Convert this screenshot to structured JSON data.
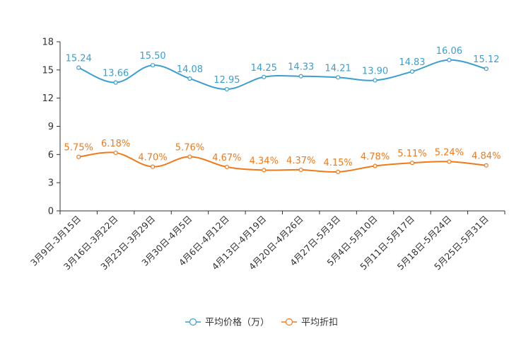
{
  "chart_data": {
    "type": "line",
    "categories": [
      "3月9日-3月15日",
      "3月16日-3月22日",
      "3月23日-3月29日",
      "3月30日-4月5日",
      "4月6日-4月12日",
      "4月13日-4月19日",
      "4月20日-4月26日",
      "4月27日-5月3日",
      "5月4日-5月10日",
      "5月11日-5月17日",
      "5月18日-5月24日",
      "5月25日-5月31日"
    ],
    "series": [
      {
        "name": "平均价格（万）",
        "color": "#3a9fd0",
        "values": [
          15.24,
          13.66,
          15.5,
          14.08,
          12.95,
          14.25,
          14.33,
          14.21,
          13.9,
          14.83,
          16.06,
          15.12
        ],
        "labels": [
          "15.24",
          "13.66",
          "15.50",
          "14.08",
          "12.95",
          "14.25",
          "14.33",
          "14.21",
          "13.90",
          "14.83",
          "16.06",
          "15.12"
        ]
      },
      {
        "name": "平均折扣",
        "color": "#f07a1a",
        "values": [
          5.75,
          6.18,
          4.7,
          5.76,
          4.67,
          4.34,
          4.37,
          4.15,
          4.78,
          5.11,
          5.24,
          4.84
        ],
        "labels": [
          "5.75%",
          "6.18%",
          "4.70%",
          "5.76%",
          "4.67%",
          "4.34%",
          "4.37%",
          "4.15%",
          "4.78%",
          "5.11%",
          "5.24%",
          "4.84%"
        ]
      }
    ],
    "ylim": [
      0,
      18
    ],
    "yticks": [
      "0",
      "3",
      "6",
      "9",
      "12",
      "15",
      "18"
    ],
    "legend_position": "bottom"
  }
}
